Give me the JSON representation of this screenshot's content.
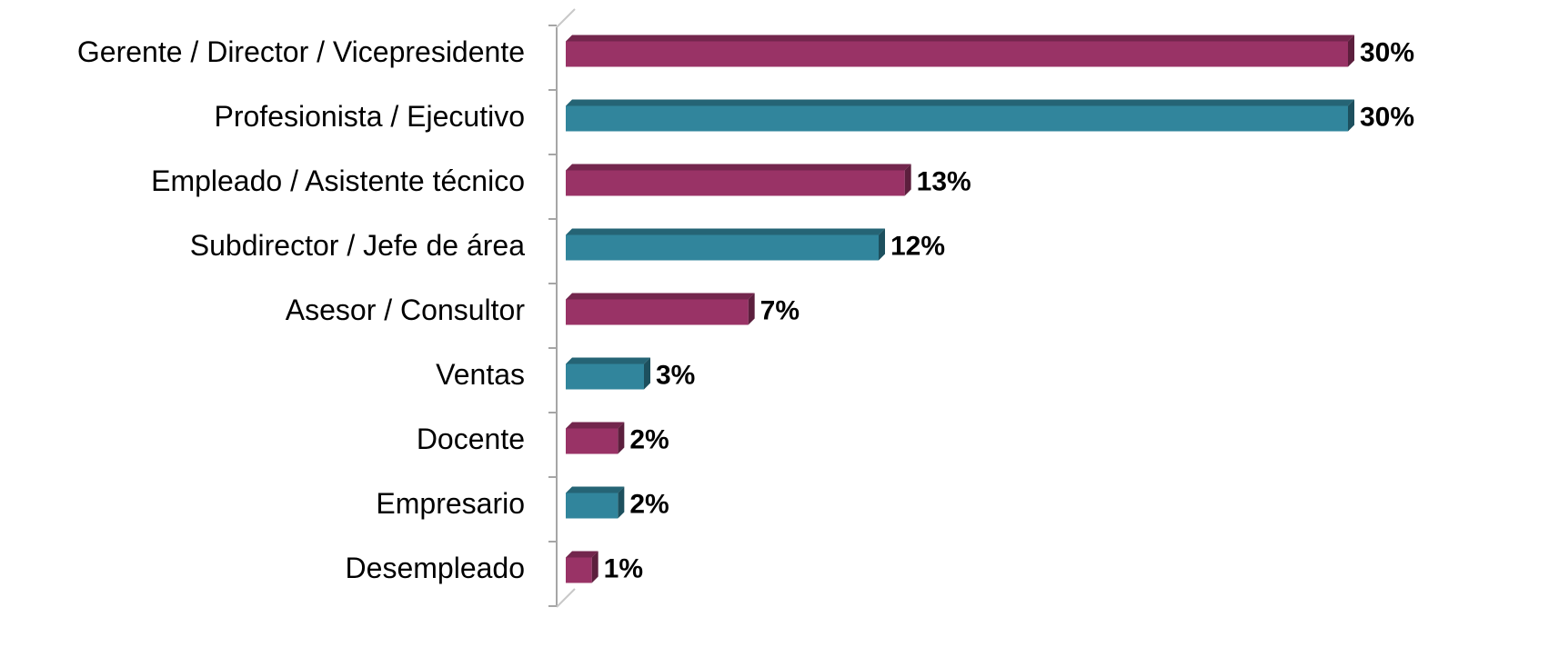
{
  "chart_data": {
    "type": "bar",
    "orientation": "horizontal",
    "categories": [
      "Gerente / Director / Vicepresidente",
      "Profesionista / Ejecutivo",
      "Empleado / Asistente técnico",
      "Subdirector / Jefe de área",
      "Asesor / Consultor",
      "Ventas",
      "Docente",
      "Empresario",
      "Desempleado"
    ],
    "values": [
      30,
      30,
      13,
      12,
      7,
      3,
      2,
      2,
      1
    ],
    "value_labels": [
      "30%",
      "30%",
      "13%",
      "12%",
      "7%",
      "3%",
      "2%",
      "2%",
      "1%"
    ],
    "colors": [
      "#993366",
      "#31859c",
      "#993366",
      "#31859c",
      "#993366",
      "#31859c",
      "#993366",
      "#31859c",
      "#993366"
    ]
  }
}
